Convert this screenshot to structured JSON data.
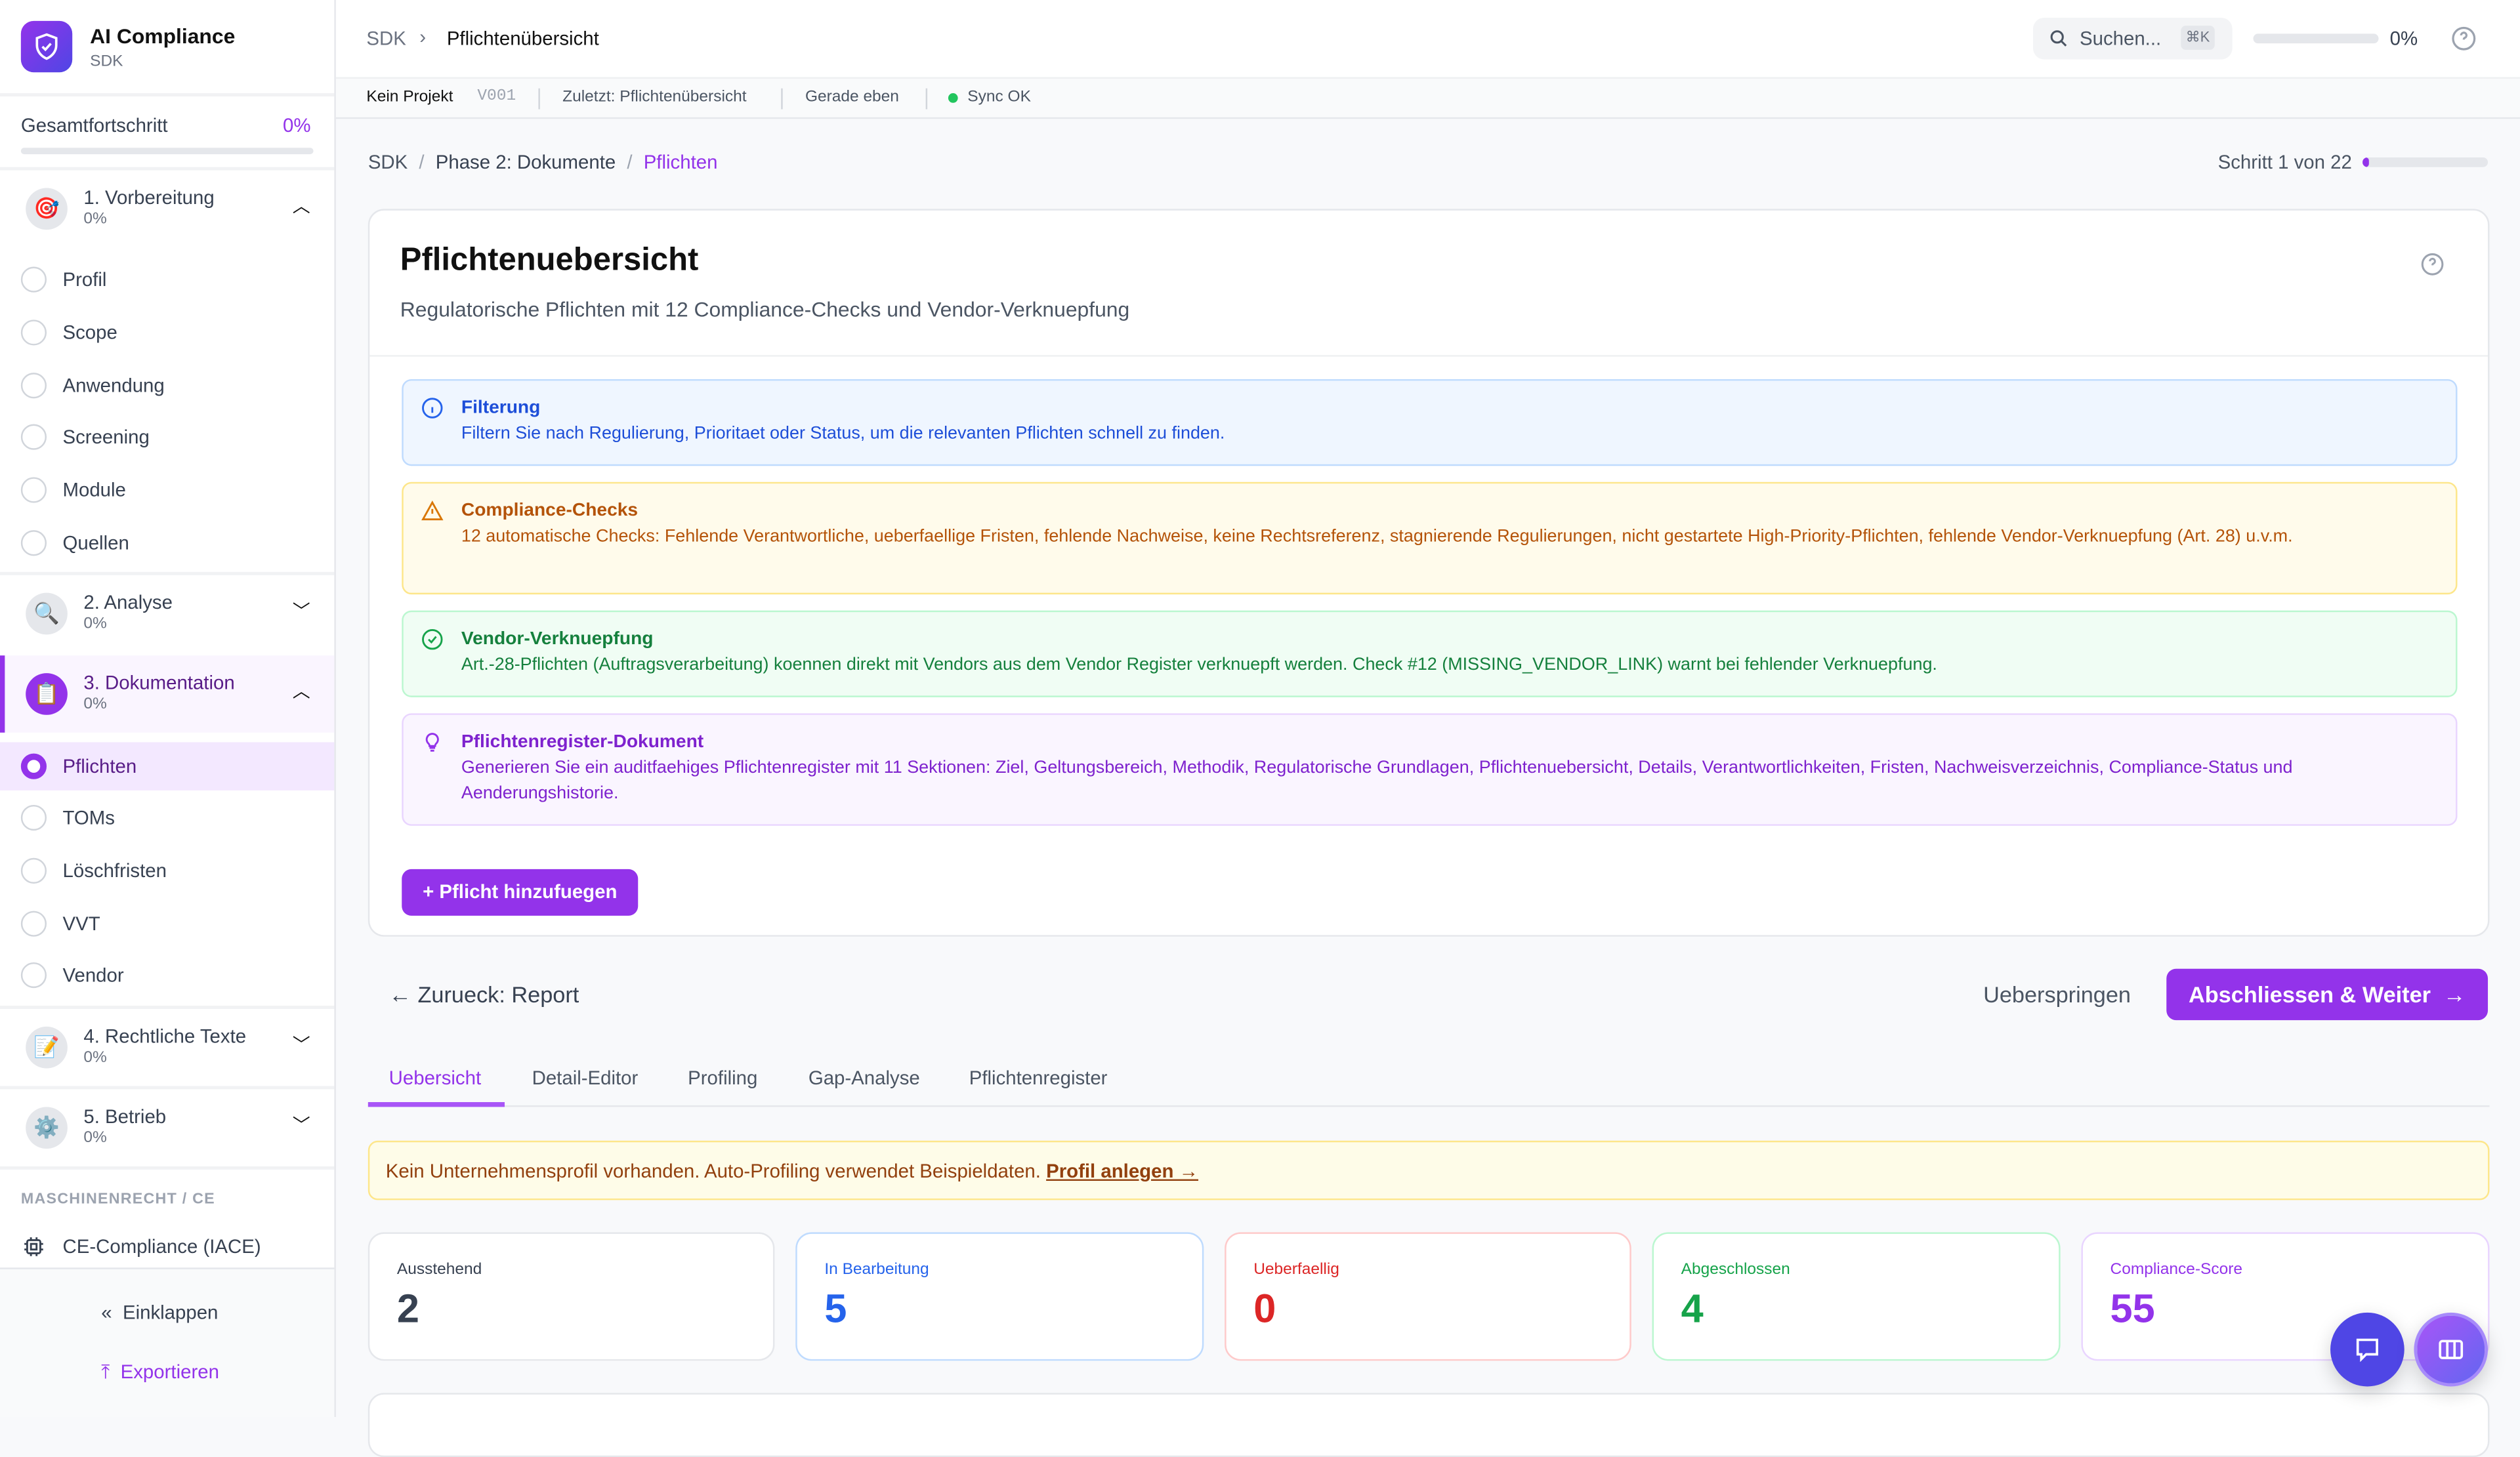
{
  "app": {
    "title": "AI Compliance",
    "subtitle": "SDK"
  },
  "progress": {
    "label": "Gesamtfortschritt",
    "value": "0%",
    "fraction": 0
  },
  "sections": [
    {
      "title": "1. Vorbereitung",
      "percent": "0%",
      "icon": "target-icon",
      "expanded": true,
      "items": [
        "Profil",
        "Scope",
        "Anwendung",
        "Screening",
        "Module",
        "Quellen"
      ]
    },
    {
      "title": "2. Analyse",
      "percent": "0%",
      "icon": "magnifier-icon",
      "expanded": false
    },
    {
      "title": "3. Dokumentation",
      "percent": "0%",
      "icon": "clipboard-icon",
      "expanded": true,
      "active": true,
      "items": [
        "Pflichten",
        "TOMs",
        "Löschfristen",
        "VVT",
        "Vendor"
      ]
    },
    {
      "title": "4. Rechtliche Texte",
      "percent": "0%",
      "icon": "memo-icon",
      "expanded": false
    },
    {
      "title": "5. Betrieb",
      "percent": "0%",
      "icon": "gear-icon",
      "expanded": false
    }
  ],
  "sidebar_extra": {
    "group_label": "MASCHINENRECHT / CE",
    "ce_item": "CE-Compliance (IACE)",
    "collapse": "Einklappen",
    "export": "Exportieren"
  },
  "topbar": {
    "crumb_root": "SDK",
    "crumb_current": "Pflichtenübersicht",
    "search_placeholder": "Suchen...",
    "shortcut": "⌘K",
    "progress": "0%"
  },
  "subbar": {
    "project": "Kein Projekt",
    "version": "V001",
    "last": "Zuletzt: Pflichtenübersicht",
    "time": "Gerade eben",
    "sync": "Sync OK"
  },
  "breadcrumb": {
    "a": "SDK",
    "b": "Phase 2: Dokumente",
    "c": "Pflichten",
    "step": "Schritt 1 von 22",
    "step_fraction": 0.045
  },
  "page": {
    "title": "Pflichtenuebersicht",
    "subtitle": "Regulatorische Pflichten mit 12 Compliance-Checks und Vendor-Verknuepfung"
  },
  "alerts": [
    {
      "title": "Filterung",
      "text": "Filtern Sie nach Regulierung, Prioritaet oder Status, um die relevanten Pflichten schnell zu finden."
    },
    {
      "title": "Compliance-Checks",
      "text": "12 automatische Checks: Fehlende Verantwortliche, ueberfaellige Fristen, fehlende Nachweise, keine Rechtsreferenz, stagnierende Regulierungen, nicht gestartete High-Priority-Pflichten, fehlende Vendor-Verknuepfung (Art. 28) u.v.m."
    },
    {
      "title": "Vendor-Verknuepfung",
      "text": "Art.-28-Pflichten (Auftragsverarbeitung) koennen direkt mit Vendors aus dem Vendor Register verknuepft werden. Check #12 (MISSING_VENDOR_LINK) warnt bei fehlender Verknuepfung."
    },
    {
      "title": "Pflichtenregister-Dokument",
      "text": "Generieren Sie ein auditfaehiges Pflichtenregister mit 11 Sektionen: Ziel, Geltungsbereich, Methodik, Regulatorische Grundlagen, Pflichtenuebersicht, Details, Verantwortlichkeiten, Fristen, Nachweisverzeichnis, Compliance-Status und Aenderungshistorie."
    }
  ],
  "add_button": "+  Pflicht hinzufuegen",
  "nav": {
    "back": "Zurueck: Report",
    "skip": "Ueberspringen",
    "next": "Abschliessen & Weiter"
  },
  "tabs": [
    "Uebersicht",
    "Detail-Editor",
    "Profiling",
    "Gap-Analyse",
    "Pflichtenregister"
  ],
  "banner": {
    "text": "Kein Unternehmensprofil vorhanden. Auto-Profiling verwendet Beispieldaten. ",
    "link": "Profil anlegen →"
  },
  "stats": [
    {
      "label": "Ausstehend",
      "value": "2",
      "color": "#374151"
    },
    {
      "label": "In Bearbeitung",
      "value": "5",
      "color": "#2563eb"
    },
    {
      "label": "Ueberfaellig",
      "value": "0",
      "color": "#dc2626"
    },
    {
      "label": "Abgeschlossen",
      "value": "4",
      "color": "#16a34a"
    },
    {
      "label": "Compliance-Score",
      "value": "55",
      "color": "#9333ea"
    }
  ],
  "colors": {
    "accent": "#9333ea",
    "info": "#2563eb",
    "warning": "#b45309",
    "success": "#15803d"
  }
}
